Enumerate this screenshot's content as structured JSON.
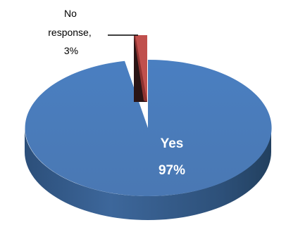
{
  "chart_data": {
    "type": "pie",
    "style": "3d",
    "title": "",
    "legend": "none",
    "slices": [
      {
        "label": "Yes",
        "value": 97,
        "value_text": "97%",
        "color": "#4f81bd",
        "label_position": "inside"
      },
      {
        "label": "No",
        "label_line2": "response,",
        "value": 3,
        "value_text": "3%",
        "color": "#c0504d",
        "label_position": "callout"
      }
    ]
  }
}
